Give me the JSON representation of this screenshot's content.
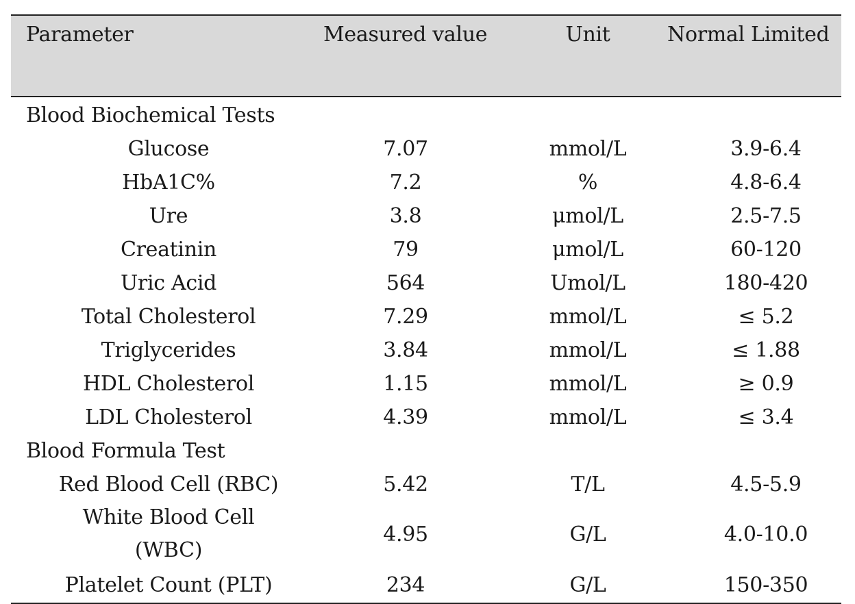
{
  "table": {
    "headers": [
      "Parameter",
      "Measured value",
      "Unit",
      "Normal Limited"
    ],
    "sections": [
      {
        "title": "Blood Biochemical Tests",
        "rows": [
          {
            "parameter": "Glucose",
            "value": "7.07",
            "unit": "mmol/L",
            "limit": "3.9-6.4"
          },
          {
            "parameter": "HbA1C%",
            "value": "7.2",
            "unit": "%",
            "limit": "4.8-6.4"
          },
          {
            "parameter": "Ure",
            "value": "3.8",
            "unit": "μmol/L",
            "limit": "2.5-7.5"
          },
          {
            "parameter": "Creatinin",
            "value": "79",
            "unit": "μmol/L",
            "limit": "60-120"
          },
          {
            "parameter": "Uric Acid",
            "value": "564",
            "unit": "Umol/L",
            "limit": "180-420"
          },
          {
            "parameter": "Total Cholesterol",
            "value": "7.29",
            "unit": "mmol/L",
            "limit": "≤ 5.2"
          },
          {
            "parameter": "Triglycerides",
            "value": "3.84",
            "unit": "mmol/L",
            "limit": "≤ 1.88"
          },
          {
            "parameter": "HDL Cholesterol",
            "value": "1.15",
            "unit": "mmol/L",
            "limit": "≥ 0.9"
          },
          {
            "parameter": "LDL Cholesterol",
            "value": "4.39",
            "unit": "mmol/L",
            "limit": "≤ 3.4"
          }
        ]
      },
      {
        "title": "Blood Formula Test",
        "rows": [
          {
            "parameter": "Red Blood Cell (RBC)",
            "value": "5.42",
            "unit": "T/L",
            "limit": "4.5-5.9"
          },
          {
            "parameter": "White Blood Cell (WBC)",
            "parameter_line1": "White Blood Cell",
            "parameter_line2": "(WBC)",
            "value": "4.95",
            "unit": "G/L",
            "limit": "4.0-10.0"
          },
          {
            "parameter": "Platelet Count (PLT)",
            "value": "234",
            "unit": "G/L",
            "limit": "150-350"
          }
        ]
      }
    ]
  }
}
